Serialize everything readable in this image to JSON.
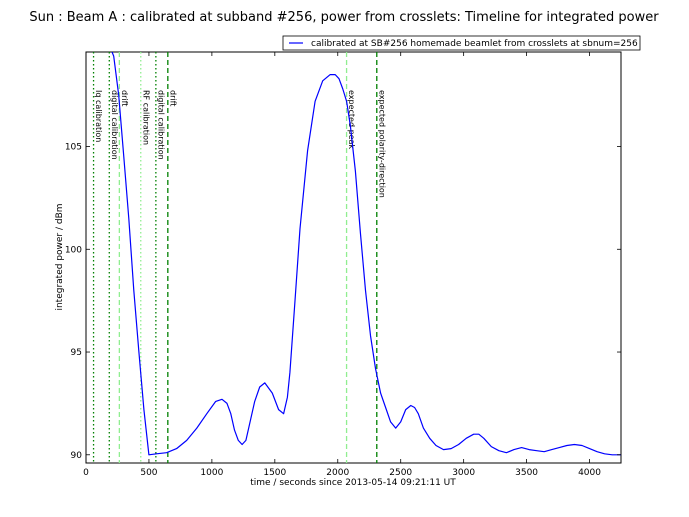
{
  "chart_data": {
    "type": "line",
    "title": "Sun : Beam A : calibrated at subband #256, power from crosslets: Timeline for integrated power",
    "xlabel": "time / seconds since 2013-05-14 09:21:11 UT",
    "ylabel": "integrated power / dBm",
    "xlim": [
      0,
      4250
    ],
    "ylim": [
      89.6,
      109.6
    ],
    "xticks": [
      0,
      500,
      1000,
      1500,
      2000,
      2500,
      3000,
      3500,
      4000
    ],
    "yticks": [
      90,
      95,
      100,
      105
    ],
    "grid": false,
    "legend_position": "top-right",
    "series": [
      {
        "name": "calibrated at SB#256 homemade beamlet from crosslets at sbnum=256",
        "color": "#0000ff",
        "x": [
          0,
          180,
          220,
          260,
          300,
          340,
          380,
          420,
          460,
          500,
          560,
          640,
          720,
          800,
          880,
          960,
          1030,
          1080,
          1120,
          1150,
          1180,
          1210,
          1240,
          1270,
          1300,
          1340,
          1380,
          1420,
          1480,
          1530,
          1570,
          1600,
          1620,
          1660,
          1700,
          1760,
          1820,
          1880,
          1940,
          1980,
          2010,
          2040,
          2070,
          2100,
          2140,
          2180,
          2220,
          2260,
          2300,
          2340,
          2380,
          2420,
          2460,
          2500,
          2540,
          2580,
          2610,
          2640,
          2680,
          2730,
          2780,
          2840,
          2900,
          2960,
          3020,
          3080,
          3120,
          3160,
          3220,
          3280,
          3340,
          3400,
          3460,
          3520,
          3580,
          3640,
          3700,
          3760,
          3820,
          3880,
          3940,
          4000,
          4060,
          4120,
          4180,
          4250
        ],
        "y": [
          110.2,
          110.0,
          109.4,
          107.5,
          104.5,
          101.5,
          98.0,
          95.0,
          92.2,
          90.0,
          90.05,
          90.1,
          90.3,
          90.7,
          91.3,
          92.0,
          92.6,
          92.7,
          92.5,
          92.0,
          91.2,
          90.7,
          90.5,
          90.7,
          91.5,
          92.6,
          93.3,
          93.5,
          93.0,
          92.2,
          92.0,
          92.8,
          94.0,
          97.5,
          101.0,
          104.8,
          107.2,
          108.2,
          108.5,
          108.5,
          108.3,
          107.8,
          107.2,
          106.0,
          103.8,
          100.8,
          98.0,
          95.8,
          94.2,
          93.0,
          92.3,
          91.6,
          91.3,
          91.6,
          92.2,
          92.4,
          92.3,
          92.0,
          91.3,
          90.8,
          90.45,
          90.25,
          90.3,
          90.5,
          90.8,
          91.0,
          91.0,
          90.8,
          90.4,
          90.2,
          90.1,
          90.25,
          90.35,
          90.25,
          90.2,
          90.15,
          90.25,
          90.35,
          90.45,
          90.5,
          90.45,
          90.3,
          90.15,
          90.05,
          90.0,
          90.0
        ]
      }
    ],
    "annotations": [
      {
        "x": 60,
        "label": "Iq calibration",
        "style": "dotted",
        "color": "#008000"
      },
      {
        "x": 185,
        "label": "digital calibration",
        "style": "dotted",
        "color": "#008000"
      },
      {
        "x": 265,
        "label": "drift",
        "style": "dashed",
        "color": "#90ee90"
      },
      {
        "x": 435,
        "label": "RF calibration",
        "style": "dotted",
        "color": "#90ee90"
      },
      {
        "x": 555,
        "label": "digital calibration",
        "style": "dotted",
        "color": "#008000"
      },
      {
        "x": 650,
        "label": "drift",
        "style": "dashed",
        "color": "#008000"
      },
      {
        "x": 2070,
        "label": "expected peak",
        "style": "dashed",
        "color": "#90ee90"
      },
      {
        "x": 2310,
        "label": "expected polarity-direction",
        "style": "dashed",
        "color": "#008000"
      }
    ]
  }
}
